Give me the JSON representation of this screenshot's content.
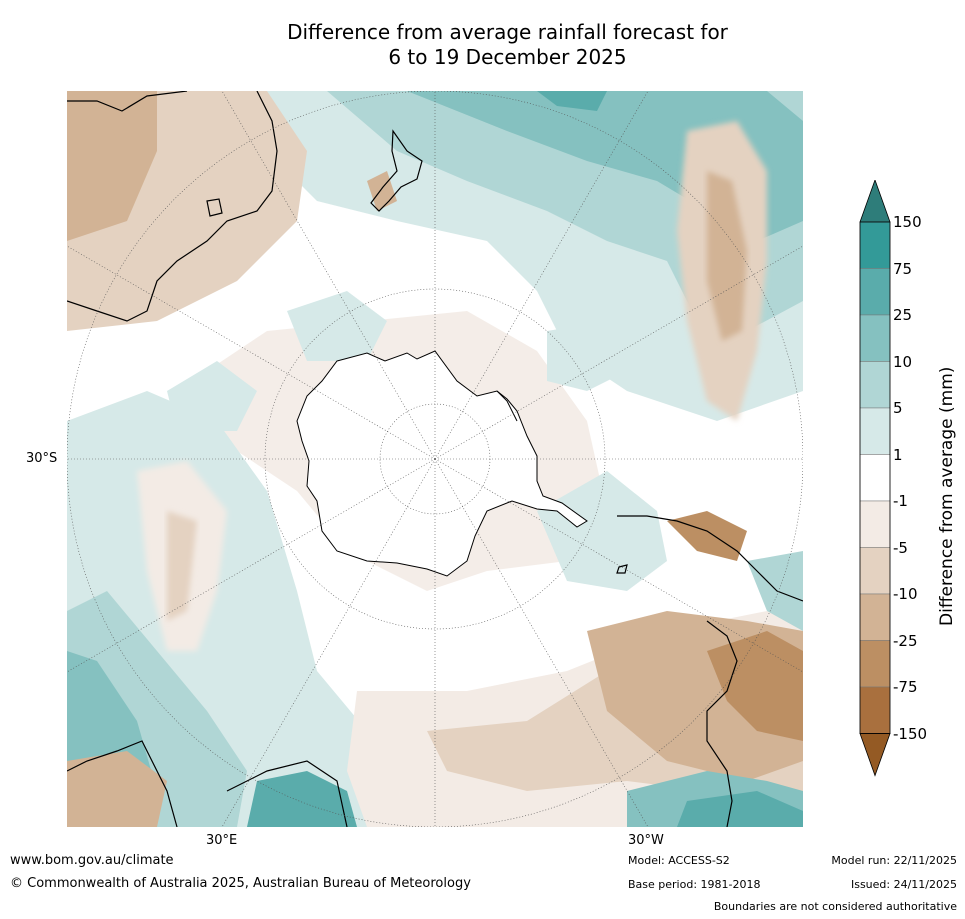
{
  "title": {
    "line1": "Difference from average rainfall forecast for",
    "line2": "6 to 19 December 2025"
  },
  "map": {
    "projection": "south-polar-stereographic",
    "lat_label": "30°S",
    "lon_labels": [
      "30°E",
      "30°W"
    ]
  },
  "colorbar": {
    "title": "Difference from average (mm)",
    "ticks": [
      "150",
      "75",
      "25",
      "10",
      "5",
      "1",
      "-1",
      "-5",
      "-10",
      "-25",
      "-75",
      "-150"
    ],
    "colors": [
      "#2e7d7a",
      "#339a98",
      "#5aacab",
      "#85c1c0",
      "#b0d6d5",
      "#d6e9e8",
      "#ffffff",
      "#f3ebe5",
      "#e4d2c1",
      "#d2b395",
      "#bc8f63",
      "#a9703e",
      "#945a24"
    ]
  },
  "footer": {
    "website": "www.bom.gov.au/climate",
    "copyright": "© Commonwealth of Australia 2025, Australian Bureau of Meteorology",
    "model": "Model: ACCESS-S2",
    "base_period": "Base period: 1981-2018",
    "model_run": "Model run: 22/11/2025",
    "issued": "Issued: 24/11/2025",
    "disclaimer": "Boundaries are not considered authoritative"
  }
}
